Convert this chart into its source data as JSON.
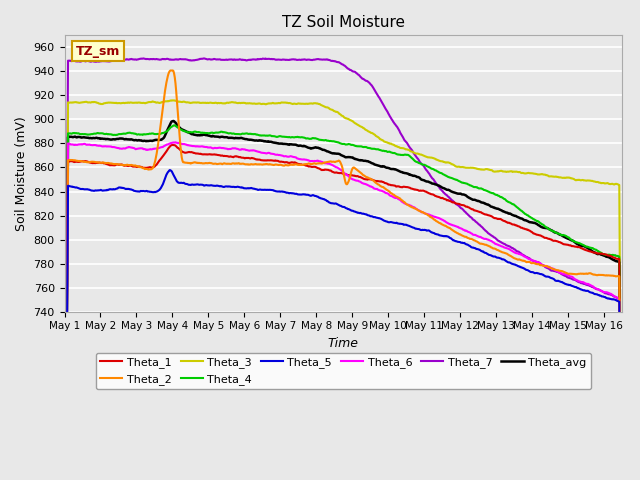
{
  "title": "TZ Soil Moisture",
  "xlabel": "Time",
  "ylabel": "Soil Moisture (mV)",
  "ylim": [
    740,
    970
  ],
  "xlim": [
    0,
    15.5
  ],
  "bg_color": "#e8e8e8",
  "legend_label": "TZ_sm",
  "legend_bg": "#ffffcc",
  "legend_border": "#cc9900",
  "colors": {
    "Theta_1": "#dd0000",
    "Theta_2": "#ff8800",
    "Theta_3": "#cccc00",
    "Theta_4": "#00cc00",
    "Theta_5": "#0000dd",
    "Theta_6": "#ff00ff",
    "Theta_7": "#9900cc",
    "Theta_avg": "#000000"
  },
  "xtick_labels": [
    "May 1",
    "May 2",
    "May 3",
    "May 4",
    "May 5",
    "May 6",
    "May 7",
    "May 8",
    "May 9",
    "May 10",
    "May 11",
    "May 12",
    "May 13",
    "May 14",
    "May 15",
    "May 16"
  ],
  "ytick_values": [
    740,
    760,
    780,
    800,
    820,
    840,
    860,
    880,
    900,
    920,
    940,
    960
  ]
}
